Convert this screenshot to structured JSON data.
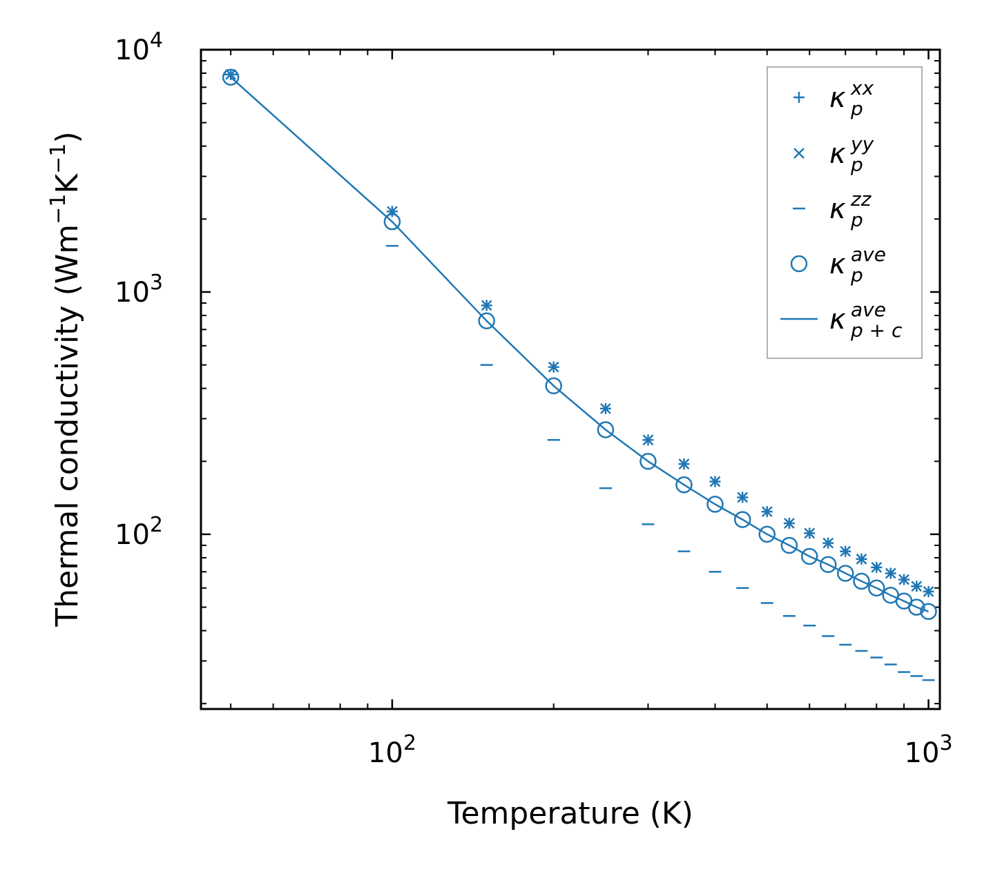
{
  "chart_data": {
    "type": "scatter",
    "xscale": "log",
    "yscale": "log",
    "xlabel": "Temperature (K)",
    "ylabel_text": "Thermal conductivity (Wm",
    "ylabel_exp1": "−1",
    "ylabel_mid": "K",
    "ylabel_exp2": "−1",
    "ylabel_close": ")",
    "xlim": [
      44,
      1050
    ],
    "ylim": [
      19,
      10000
    ],
    "x_ticks": [
      {
        "base": "10",
        "exp": "2",
        "value": 100
      },
      {
        "base": "10",
        "exp": "3",
        "value": 1000
      }
    ],
    "y_ticks": [
      {
        "base": "10",
        "exp": "2",
        "value": 100
      },
      {
        "base": "10",
        "exp": "3",
        "value": 1000
      },
      {
        "base": "10",
        "exp": "4",
        "value": 10000
      }
    ],
    "color": "#1f77b4",
    "legend_position": "top-right",
    "x": [
      50,
      100,
      150,
      200,
      250,
      300,
      350,
      400,
      450,
      500,
      550,
      600,
      650,
      700,
      750,
      800,
      850,
      900,
      950,
      1000
    ],
    "series": [
      {
        "name": "kappa_p_xx",
        "symbol": "κ",
        "sub": "p",
        "sup": "xx",
        "marker": "plus",
        "values": [
          7900,
          2150,
          880,
          490,
          330,
          245,
          195,
          165,
          142,
          124,
          111,
          101,
          92,
          85,
          79,
          73,
          69,
          65,
          61,
          58
        ]
      },
      {
        "name": "kappa_p_yy",
        "symbol": "κ",
        "sub": "p",
        "sup": "yy",
        "marker": "x",
        "values": [
          7900,
          2150,
          880,
          490,
          330,
          245,
          195,
          165,
          142,
          124,
          111,
          101,
          92,
          85,
          79,
          73,
          69,
          65,
          61,
          58
        ]
      },
      {
        "name": "kappa_p_zz",
        "symbol": "κ",
        "sub": "p",
        "sup": "zz",
        "marker": "hline",
        "values": [
          7900,
          1550,
          500,
          245,
          155,
          110,
          85,
          70,
          60,
          52,
          46,
          42,
          38,
          35,
          33,
          31,
          29,
          27,
          26,
          25
        ]
      },
      {
        "name": "kappa_p_ave",
        "symbol": "κ",
        "sub": "p",
        "sup": "ave",
        "marker": "circle",
        "values": [
          7700,
          1950,
          760,
          410,
          270,
          200,
          160,
          133,
          115,
          100,
          90,
          81,
          75,
          69,
          64,
          60,
          56,
          53,
          50,
          48
        ]
      },
      {
        "name": "kappa_p+c_ave",
        "symbol": "κ",
        "sub": "p + c",
        "sup": "ave",
        "marker": "line",
        "values": [
          7700,
          1950,
          760,
          410,
          270,
          200,
          160,
          133,
          115,
          100,
          90,
          81,
          75,
          69,
          64,
          60,
          56,
          53,
          50,
          48
        ]
      }
    ]
  }
}
